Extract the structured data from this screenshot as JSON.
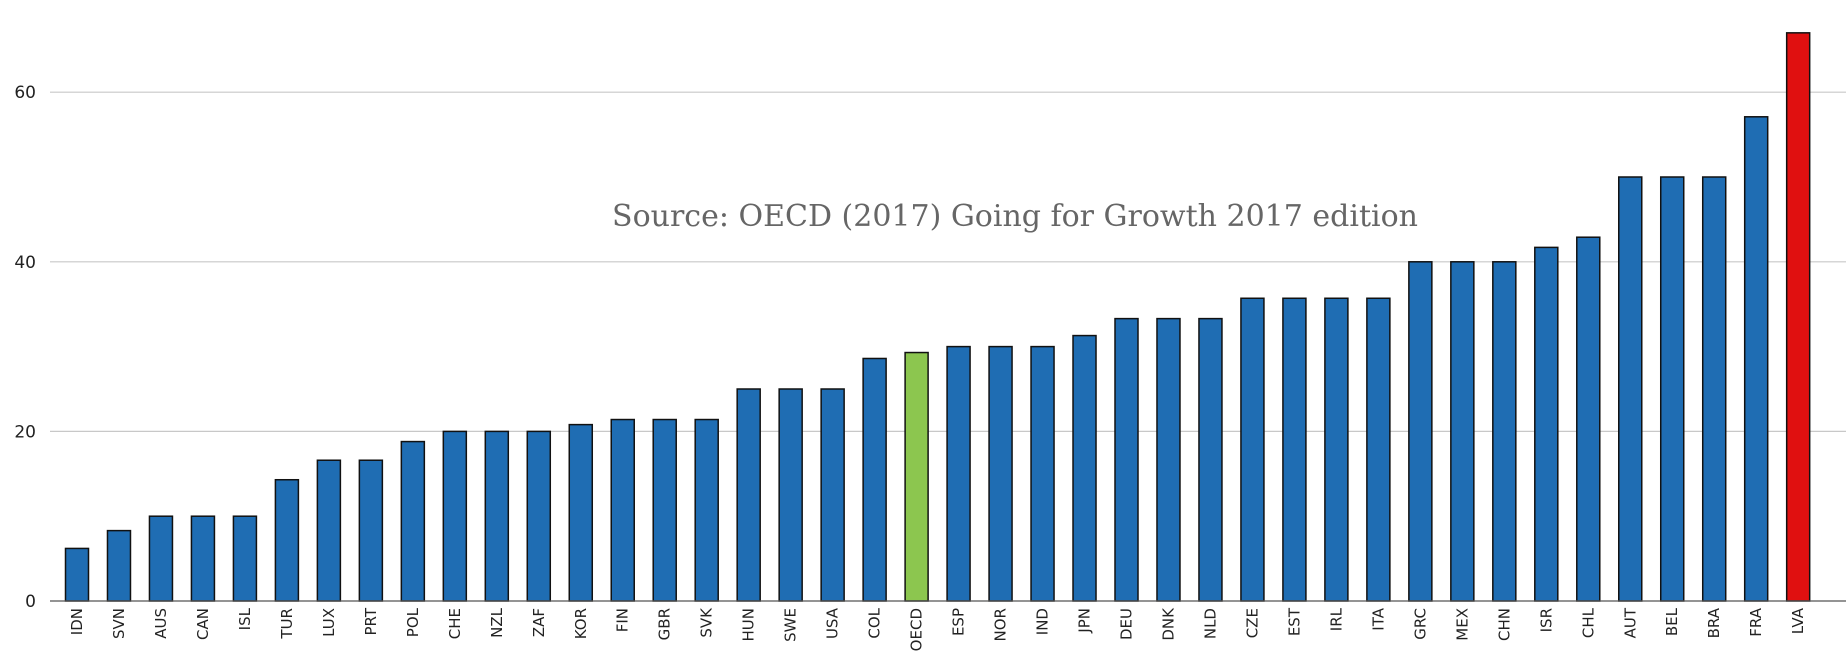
{
  "chart_data": {
    "type": "bar",
    "title": "",
    "xlabel": "",
    "ylabel": "",
    "ylim": [
      0,
      68
    ],
    "yticks": [
      0,
      20,
      40,
      60
    ],
    "grid": true,
    "annotation": "Source: OECD (2017)  Going for Growth 2017 edition",
    "colors": {
      "default": "#1f6db3",
      "OECD": "#8cc64f",
      "LVA": "#e01010"
    },
    "categories": [
      "IDN",
      "SVN",
      "AUS",
      "CAN",
      "ISL",
      "TUR",
      "LUX",
      "PRT",
      "POL",
      "CHE",
      "NZL",
      "ZAF",
      "KOR",
      "FIN",
      "GBR",
      "SVK",
      "HUN",
      "SWE",
      "USA",
      "COL",
      "OECD",
      "ESP",
      "NOR",
      "IND",
      "JPN",
      "DEU",
      "DNK",
      "NLD",
      "CZE",
      "EST",
      "IRL",
      "ITA",
      "GRC",
      "MEX",
      "CHN",
      "ISR",
      "CHL",
      "AUT",
      "BEL",
      "BRA",
      "FRA",
      "LVA"
    ],
    "values": [
      6.2,
      8.3,
      10,
      10,
      10,
      14.3,
      16.6,
      16.6,
      18.8,
      20,
      20,
      20,
      20.8,
      21.4,
      21.4,
      21.4,
      25,
      25,
      25,
      28.6,
      29.3,
      30,
      30,
      30,
      31.3,
      33.3,
      33.3,
      33.3,
      35.7,
      35.7,
      35.7,
      35.7,
      40,
      40,
      40,
      41.7,
      42.9,
      50,
      50,
      50,
      57.1,
      67
    ]
  }
}
